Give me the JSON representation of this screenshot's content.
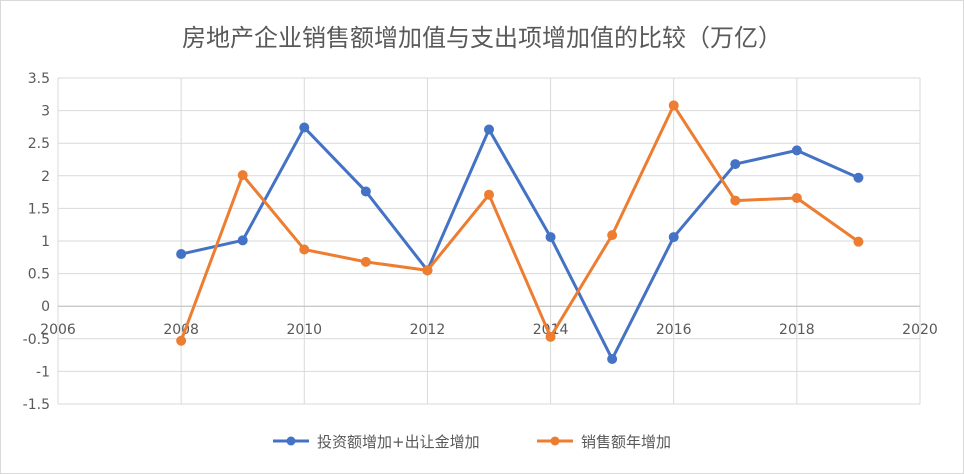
{
  "chart_data": {
    "type": "scatter",
    "title": "房地产企业销售额增加值与支出项增加值的比较（万亿）",
    "xlabel": "",
    "ylabel": "",
    "xlim": [
      2006,
      2020
    ],
    "ylim": [
      -1.5,
      3.5
    ],
    "x_ticks": [
      2006,
      2008,
      2010,
      2012,
      2014,
      2016,
      2018,
      2020
    ],
    "x_tick_labels": [
      "2006",
      "2008",
      "2010",
      "2012",
      "2014",
      "2016",
      "2018",
      "2020"
    ],
    "y_ticks": [
      -1.5,
      -1,
      -0.5,
      0,
      0.5,
      1,
      1.5,
      2,
      2.5,
      3,
      3.5
    ],
    "y_tick_labels": [
      "-1.5",
      "-1",
      "-0.5",
      "0",
      "0.5",
      "1",
      "1.5",
      "2",
      "2.5",
      "3",
      "3.5"
    ],
    "grid": true,
    "legend": "bottom",
    "series": [
      {
        "name": "投资额增加+出让金增加",
        "color": "#4472C4",
        "x": [
          2008,
          2009,
          2010,
          2011,
          2012,
          2013,
          2014,
          2015,
          2016,
          2017,
          2018,
          2019
        ],
        "y": [
          0.8,
          1.01,
          2.74,
          1.76,
          0.55,
          2.71,
          1.06,
          -0.81,
          1.06,
          2.18,
          2.39,
          1.97
        ]
      },
      {
        "name": "销售额年增加",
        "color": "#ED7D31",
        "x": [
          2008,
          2009,
          2010,
          2011,
          2012,
          2013,
          2014,
          2015,
          2016,
          2017,
          2018,
          2019
        ],
        "y": [
          -0.53,
          2.01,
          0.87,
          0.68,
          0.55,
          1.71,
          -0.47,
          1.09,
          3.08,
          1.62,
          1.66,
          0.99
        ]
      }
    ]
  }
}
